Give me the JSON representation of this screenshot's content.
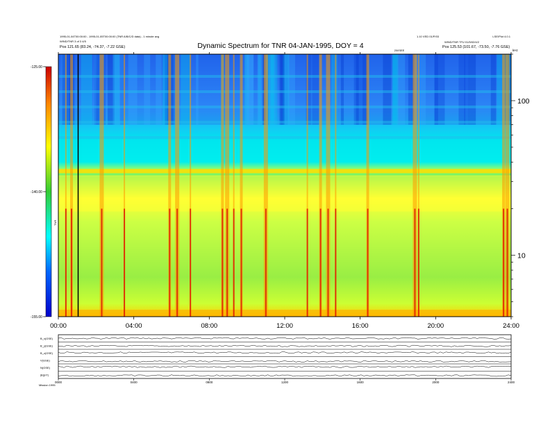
{
  "chart_data": [
    {
      "type": "heatmap",
      "title": "Dynamic Spectrum for TNR 04-JAN-1995, DOY = 4",
      "header_left": [
        "1995-01-04T00:00:00 - 1995-01-05T00:00:00 (TNR A/B/C/D data) - 1 minute avg",
        "WIND/TNR 3 of 3 4/5",
        "Pos   121.65 (83.24, -74.37, -7.22 GSE)"
      ],
      "header_right": [
        "1.10 VED 01/P/03",
        "LSE/Plot 4.0.1",
        "WIND/TNR  TFU 01/5/02/4/2",
        "Pos   125.53 (101.67, -73.50, -7.76 GSE)"
      ],
      "marker_label": "20/ISEE",
      "xlabel": "",
      "ylabel_right": "kHz",
      "colorbar_label": "TNR",
      "x_ticks": [
        "00:00",
        "04:00",
        "08:00",
        "12:00",
        "16:00",
        "20:00",
        "24:00"
      ],
      "x_range_hours": [
        0,
        24
      ],
      "y_scale": "log",
      "y_range_khz": [
        4,
        200
      ],
      "y_ticks_khz": [
        10,
        100
      ],
      "colorbar_ticks": [
        "-125.00",
        "-140.00",
        "-155.00"
      ],
      "colorbar_range_db": [
        -155,
        -125
      ],
      "features": {
        "plasma_line_khz": 35,
        "band_top_khz": 70,
        "bright_band_low_khz": 20,
        "burst_times_hours": [
          0.4,
          0.7,
          2.3,
          3.5,
          5.9,
          6.3,
          7.0,
          8.7,
          8.95,
          9.3,
          9.7,
          11.0,
          13.2,
          13.9,
          14.3,
          14.7,
          16.4,
          18.9,
          19.1,
          23.6,
          23.8
        ]
      }
    },
    {
      "type": "line",
      "subplot": "lower panels",
      "x_ticks": [
        "0000",
        "0400",
        "0800",
        "1200",
        "1600",
        "2000",
        "2400"
      ],
      "x_range_hours": [
        0,
        24
      ],
      "row_labels": [
        "B_x(GSE)",
        "B_y(GSE)",
        "B_z(GSE)",
        "V(GSE)",
        "N(GSE)",
        "|B|(nT)"
      ],
      "footer_label": "Mission   1995",
      "series_levels": [
        0.5,
        0.45,
        0.55,
        0.35,
        0.6,
        0.4
      ]
    }
  ]
}
